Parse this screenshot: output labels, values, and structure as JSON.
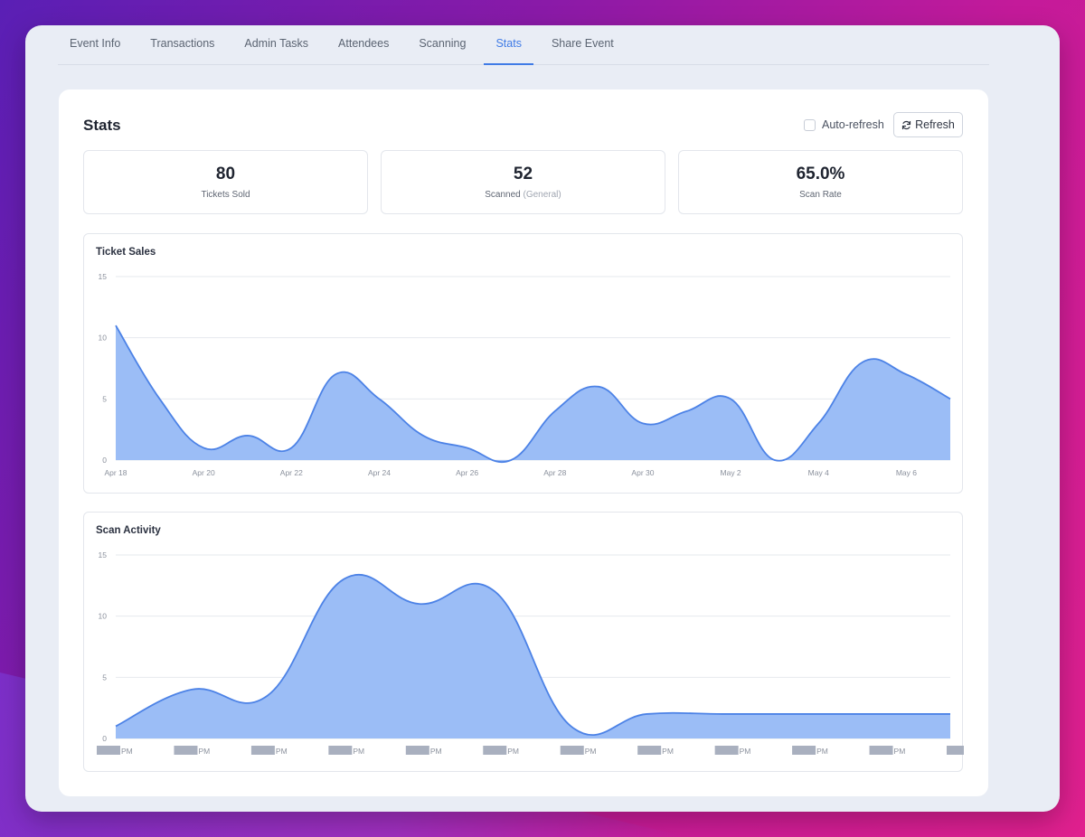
{
  "tabs": [
    {
      "label": "Event Info",
      "active": false
    },
    {
      "label": "Transactions",
      "active": false
    },
    {
      "label": "Admin Tasks",
      "active": false
    },
    {
      "label": "Attendees",
      "active": false
    },
    {
      "label": "Scanning",
      "active": false
    },
    {
      "label": "Stats",
      "active": true
    },
    {
      "label": "Share Event",
      "active": false
    }
  ],
  "stats_card": {
    "title": "Stats",
    "auto_refresh_label": "Auto-refresh",
    "auto_refresh_checked": false,
    "refresh_label": "Refresh",
    "refresh_icon": "refresh-icon"
  },
  "stats": [
    {
      "value": "80",
      "label": "Tickets Sold"
    },
    {
      "value": "52",
      "label": "Scanned",
      "label_suffix": "(General)"
    },
    {
      "value": "65.0%",
      "label": "Scan Rate"
    }
  ],
  "colors": {
    "accent": "#3f7be6",
    "area_fill": "#9bbdf6",
    "area_line": "#4c82e6",
    "redaction": "#a9b0bf"
  },
  "chart_data": [
    {
      "type": "area",
      "title": "Ticket Sales",
      "x": [
        "Apr 18",
        "Apr 19",
        "Apr 20",
        "Apr 21",
        "Apr 22",
        "Apr 23",
        "Apr 24",
        "Apr 25",
        "Apr 26",
        "Apr 27",
        "Apr 28",
        "Apr 29",
        "Apr 30",
        "May 1",
        "May 2",
        "May 3",
        "May 4",
        "May 5",
        "May 6",
        "May 7"
      ],
      "x_tick_labels": [
        "Apr 18",
        "Apr 20",
        "Apr 22",
        "Apr 24",
        "Apr 26",
        "Apr 28",
        "Apr 30",
        "May 2",
        "May 4",
        "May 6"
      ],
      "values": [
        11,
        5,
        1,
        2,
        1,
        7,
        5,
        2,
        1,
        0,
        4,
        6,
        3,
        4,
        5,
        0,
        3,
        8,
        7,
        5
      ],
      "ylim": [
        0,
        15
      ],
      "y_ticks": [
        0,
        5,
        10,
        15
      ],
      "grid": true,
      "smooth": true
    },
    {
      "type": "area",
      "title": "Scan Activity",
      "x": [
        "1",
        "2",
        "3",
        "4",
        "5",
        "6",
        "7",
        "8",
        "9",
        "10",
        "11",
        "12"
      ],
      "x_tick_labels": [
        "PM",
        "PM",
        "PM",
        "PM",
        "PM",
        "PM",
        "PM",
        "PM",
        "PM",
        "PM",
        "PM",
        "PM"
      ],
      "x_tick_labels_redacted": true,
      "values": [
        1,
        4,
        3.5,
        13,
        11,
        12,
        1,
        2,
        2,
        2,
        2,
        2
      ],
      "ylim": [
        0,
        15
      ],
      "y_ticks": [
        0,
        5,
        10,
        15
      ],
      "grid": true,
      "smooth": true
    }
  ]
}
